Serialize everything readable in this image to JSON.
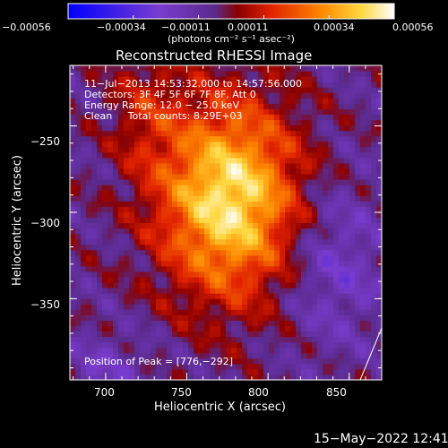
{
  "chart_data": {
    "type": "heatmap",
    "title": "Reconstructed RHESSI Image",
    "xlabel": "Heliocentric X (arcsec)",
    "ylabel": "Heliocentric Y (arcsec)",
    "xlim": [
      678,
      870
    ],
    "ylim": [
      -397,
      -215
    ],
    "x_ticks": [
      700,
      750,
      800,
      850
    ],
    "y_ticks": [
      -250,
      -300,
      -350
    ],
    "x_tick_labels": [
      "700",
      "750",
      "800",
      "850"
    ],
    "y_tick_labels": [
      "−250",
      "−300",
      "−350"
    ],
    "colorbar": {
      "range": [
        -0.00056,
        0.00056
      ],
      "tick_labels": [
        "−0.00056",
        "−0.00034",
        "−0.00011",
        "0.00011",
        "0.00034",
        "0.00056"
      ],
      "unit_label": "(photons cm⁻² s⁻¹ asec⁻²)"
    },
    "annotations": [
      "11−Jul−2013 14:53:32.000 to 14:57:56.000",
      "Detectors: 3F 4F 5F 6F 7F 8F, Att 0",
      "Energy Range: 12.0 − 25.0 keV",
      "Clean     Total counts: 8.29E+03"
    ],
    "peak_label": "Position of Peak = [776,−292]",
    "peak": [
      776,
      -292
    ],
    "timestamp": "15−May−2022 12:41",
    "colors": {
      "background": "#000000",
      "frame": "#ffffff",
      "colormap": [
        "#0000ff",
        "#7a3ccf",
        "#5a2a8c",
        "#8a0000",
        "#e02000",
        "#ff8a00",
        "#ffd840",
        "#ffffff"
      ]
    }
  }
}
